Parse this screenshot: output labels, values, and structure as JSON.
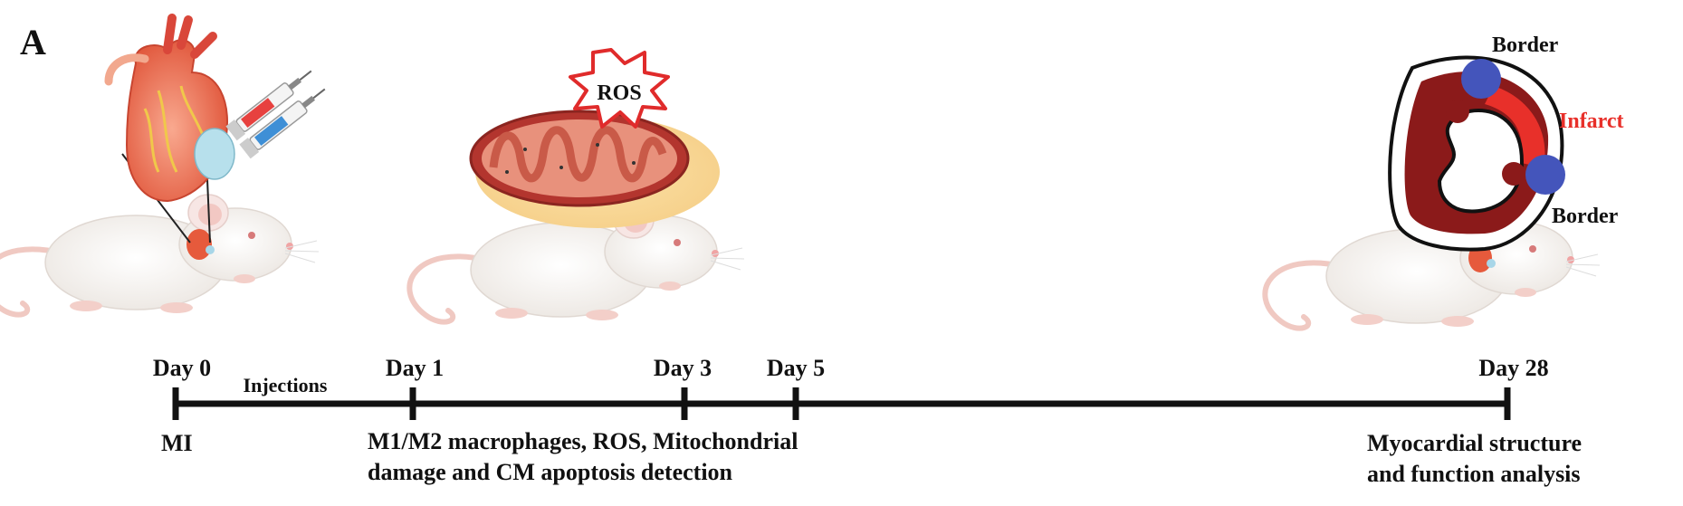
{
  "panel_label": "A",
  "timeline": {
    "days": [
      {
        "label": "Day 0"
      },
      {
        "label": "Day 1"
      },
      {
        "label": "Day 3"
      },
      {
        "label": "Day 5"
      },
      {
        "label": "Day 28"
      }
    ],
    "injections_label": "Injections",
    "below": {
      "mi": "MI",
      "detection_line1": "M1/M2 macrophages, ROS, Mitochondrial",
      "detection_line2": "damage and CM apoptosis detection",
      "analysis_line1": "Myocardial structure",
      "analysis_line2": "and function analysis"
    }
  },
  "ros_label": "ROS",
  "heart_section": {
    "border_top": "Border",
    "border_bottom": "Border",
    "infarct": "Infarct",
    "infarct_color": "#e8302a",
    "border_dot_color": "#4455bb",
    "tissue_color": "#8b1a1a"
  },
  "icons": {
    "heart": "heart-icon",
    "syringe": "syringe-icon",
    "mouse": "mouse-icon",
    "mitochondrion": "mitochondrion-icon",
    "ros_burst": "starburst-icon"
  }
}
